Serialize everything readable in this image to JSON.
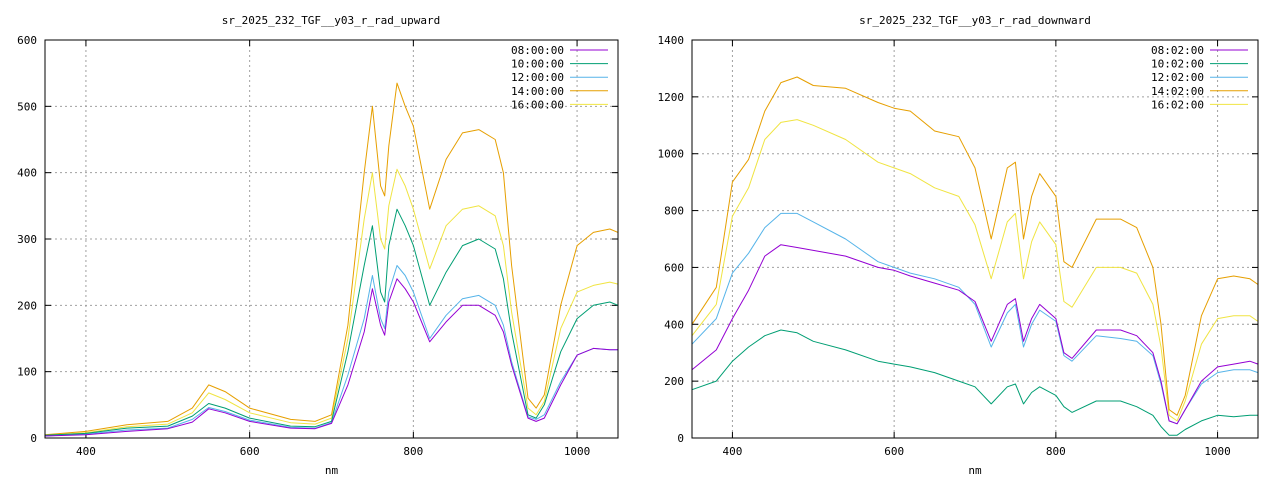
{
  "chart_data": [
    {
      "type": "line",
      "title": "sr_2025_232_TGF__y03_r_rad_upward",
      "xlabel": "nm",
      "ylabel": "",
      "xlim": [
        350,
        1050
      ],
      "ylim": [
        0,
        600
      ],
      "xticks": [
        400,
        600,
        800,
        1000
      ],
      "yticks": [
        0,
        100,
        200,
        300,
        400,
        500,
        600
      ],
      "grid": true,
      "legend_position": "top-right",
      "x": [
        350,
        400,
        450,
        500,
        530,
        550,
        570,
        600,
        650,
        680,
        700,
        720,
        740,
        750,
        760,
        765,
        770,
        780,
        790,
        800,
        820,
        840,
        860,
        880,
        900,
        910,
        920,
        940,
        950,
        960,
        980,
        1000,
        1020,
        1040,
        1050
      ],
      "series": [
        {
          "name": "08:00:00",
          "color": "#9400d3",
          "values": [
            3,
            5,
            10,
            14,
            24,
            44,
            38,
            25,
            15,
            14,
            22,
            80,
            160,
            225,
            170,
            155,
            205,
            240,
            225,
            205,
            145,
            175,
            200,
            200,
            185,
            160,
            110,
            30,
            25,
            30,
            80,
            125,
            135,
            133,
            133
          ]
        },
        {
          "name": "10:00:00",
          "color": "#009e73",
          "values": [
            4,
            7,
            15,
            18,
            33,
            52,
            45,
            30,
            18,
            17,
            25,
            130,
            260,
            320,
            220,
            205,
            290,
            345,
            320,
            290,
            200,
            250,
            290,
            300,
            285,
            240,
            160,
            35,
            30,
            50,
            130,
            180,
            200,
            205,
            200
          ]
        },
        {
          "name": "12:00:00",
          "color": "#56b4e9",
          "values": [
            3,
            6,
            12,
            15,
            28,
            46,
            40,
            27,
            16,
            15,
            23,
            95,
            180,
            245,
            180,
            165,
            220,
            260,
            245,
            220,
            150,
            185,
            210,
            215,
            200,
            170,
            115,
            32,
            28,
            35,
            85,
            125,
            135,
            133,
            133
          ]
        },
        {
          "name": "14:00:00",
          "color": "#e69f00",
          "values": [
            5,
            10,
            20,
            25,
            45,
            80,
            70,
            45,
            28,
            25,
            35,
            170,
            400,
            500,
            380,
            365,
            440,
            535,
            500,
            470,
            345,
            420,
            460,
            465,
            450,
            400,
            260,
            60,
            45,
            65,
            200,
            290,
            310,
            315,
            310
          ]
        },
        {
          "name": "16:00:00",
          "color": "#f0e442",
          "values": [
            4,
            8,
            17,
            21,
            38,
            68,
            58,
            38,
            23,
            21,
            30,
            150,
            330,
            400,
            300,
            285,
            350,
            405,
            380,
            345,
            255,
            320,
            345,
            350,
            335,
            290,
            190,
            45,
            35,
            55,
            165,
            220,
            230,
            235,
            232
          ]
        }
      ]
    },
    {
      "type": "line",
      "title": "sr_2025_232_TGF__y03_r_rad_downward",
      "xlabel": "nm",
      "ylabel": "",
      "xlim": [
        350,
        1050
      ],
      "ylim": [
        0,
        1400
      ],
      "xticks": [
        400,
        600,
        800,
        1000
      ],
      "yticks": [
        0,
        200,
        400,
        600,
        800,
        1000,
        1200,
        1400
      ],
      "grid": true,
      "legend_position": "top-right",
      "x": [
        350,
        380,
        400,
        420,
        440,
        460,
        480,
        500,
        540,
        580,
        600,
        620,
        650,
        680,
        700,
        720,
        740,
        750,
        760,
        770,
        780,
        800,
        810,
        820,
        850,
        880,
        900,
        920,
        930,
        940,
        950,
        960,
        980,
        1000,
        1020,
        1040,
        1050
      ],
      "series": [
        {
          "name": "08:02:00",
          "color": "#9400d3",
          "values": [
            240,
            310,
            420,
            520,
            640,
            680,
            670,
            660,
            640,
            600,
            590,
            570,
            545,
            520,
            480,
            340,
            470,
            490,
            340,
            420,
            470,
            420,
            300,
            280,
            380,
            380,
            360,
            300,
            200,
            60,
            50,
            100,
            200,
            250,
            260,
            270,
            260
          ]
        },
        {
          "name": "10:02:00",
          "color": "#009e73",
          "values": [
            170,
            200,
            270,
            320,
            360,
            380,
            370,
            340,
            310,
            270,
            260,
            250,
            230,
            200,
            180,
            120,
            180,
            190,
            120,
            160,
            180,
            150,
            110,
            90,
            130,
            130,
            110,
            80,
            40,
            10,
            10,
            30,
            60,
            80,
            75,
            80,
            80
          ]
        },
        {
          "name": "12:02:00",
          "color": "#56b4e9",
          "values": [
            330,
            420,
            580,
            650,
            740,
            790,
            790,
            760,
            700,
            620,
            600,
            580,
            560,
            530,
            470,
            320,
            440,
            470,
            320,
            400,
            450,
            410,
            290,
            270,
            360,
            350,
            340,
            290,
            190,
            60,
            50,
            100,
            190,
            230,
            240,
            240,
            230
          ]
        },
        {
          "name": "14:02:00",
          "color": "#e69f00",
          "values": [
            400,
            530,
            900,
            980,
            1150,
            1250,
            1270,
            1240,
            1230,
            1180,
            1160,
            1150,
            1080,
            1060,
            950,
            700,
            950,
            970,
            700,
            850,
            930,
            850,
            620,
            600,
            770,
            770,
            740,
            600,
            400,
            100,
            80,
            150,
            430,
            560,
            570,
            560,
            540
          ]
        },
        {
          "name": "16:02:00",
          "color": "#f0e442",
          "values": [
            360,
            470,
            780,
            880,
            1050,
            1110,
            1120,
            1100,
            1050,
            970,
            950,
            930,
            880,
            850,
            750,
            560,
            760,
            790,
            560,
            690,
            760,
            680,
            480,
            460,
            600,
            600,
            580,
            470,
            320,
            80,
            60,
            130,
            330,
            420,
            430,
            430,
            410
          ]
        }
      ]
    }
  ]
}
